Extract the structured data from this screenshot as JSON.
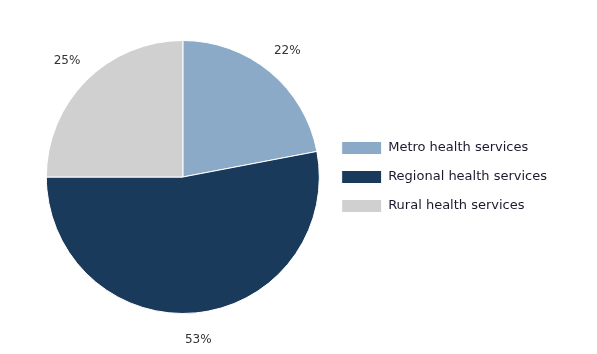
{
  "chart_data": {
    "type": "pie",
    "categories": [
      "Metro health services",
      "Regional health services",
      "Rural health services"
    ],
    "values": [
      22,
      53,
      25
    ],
    "value_labels": [
      "22%",
      "53%",
      "25%"
    ],
    "colors": [
      "#8baac8",
      "#1a3a5c",
      "#d0d0d0"
    ],
    "data_labels": true,
    "legend": "right"
  }
}
